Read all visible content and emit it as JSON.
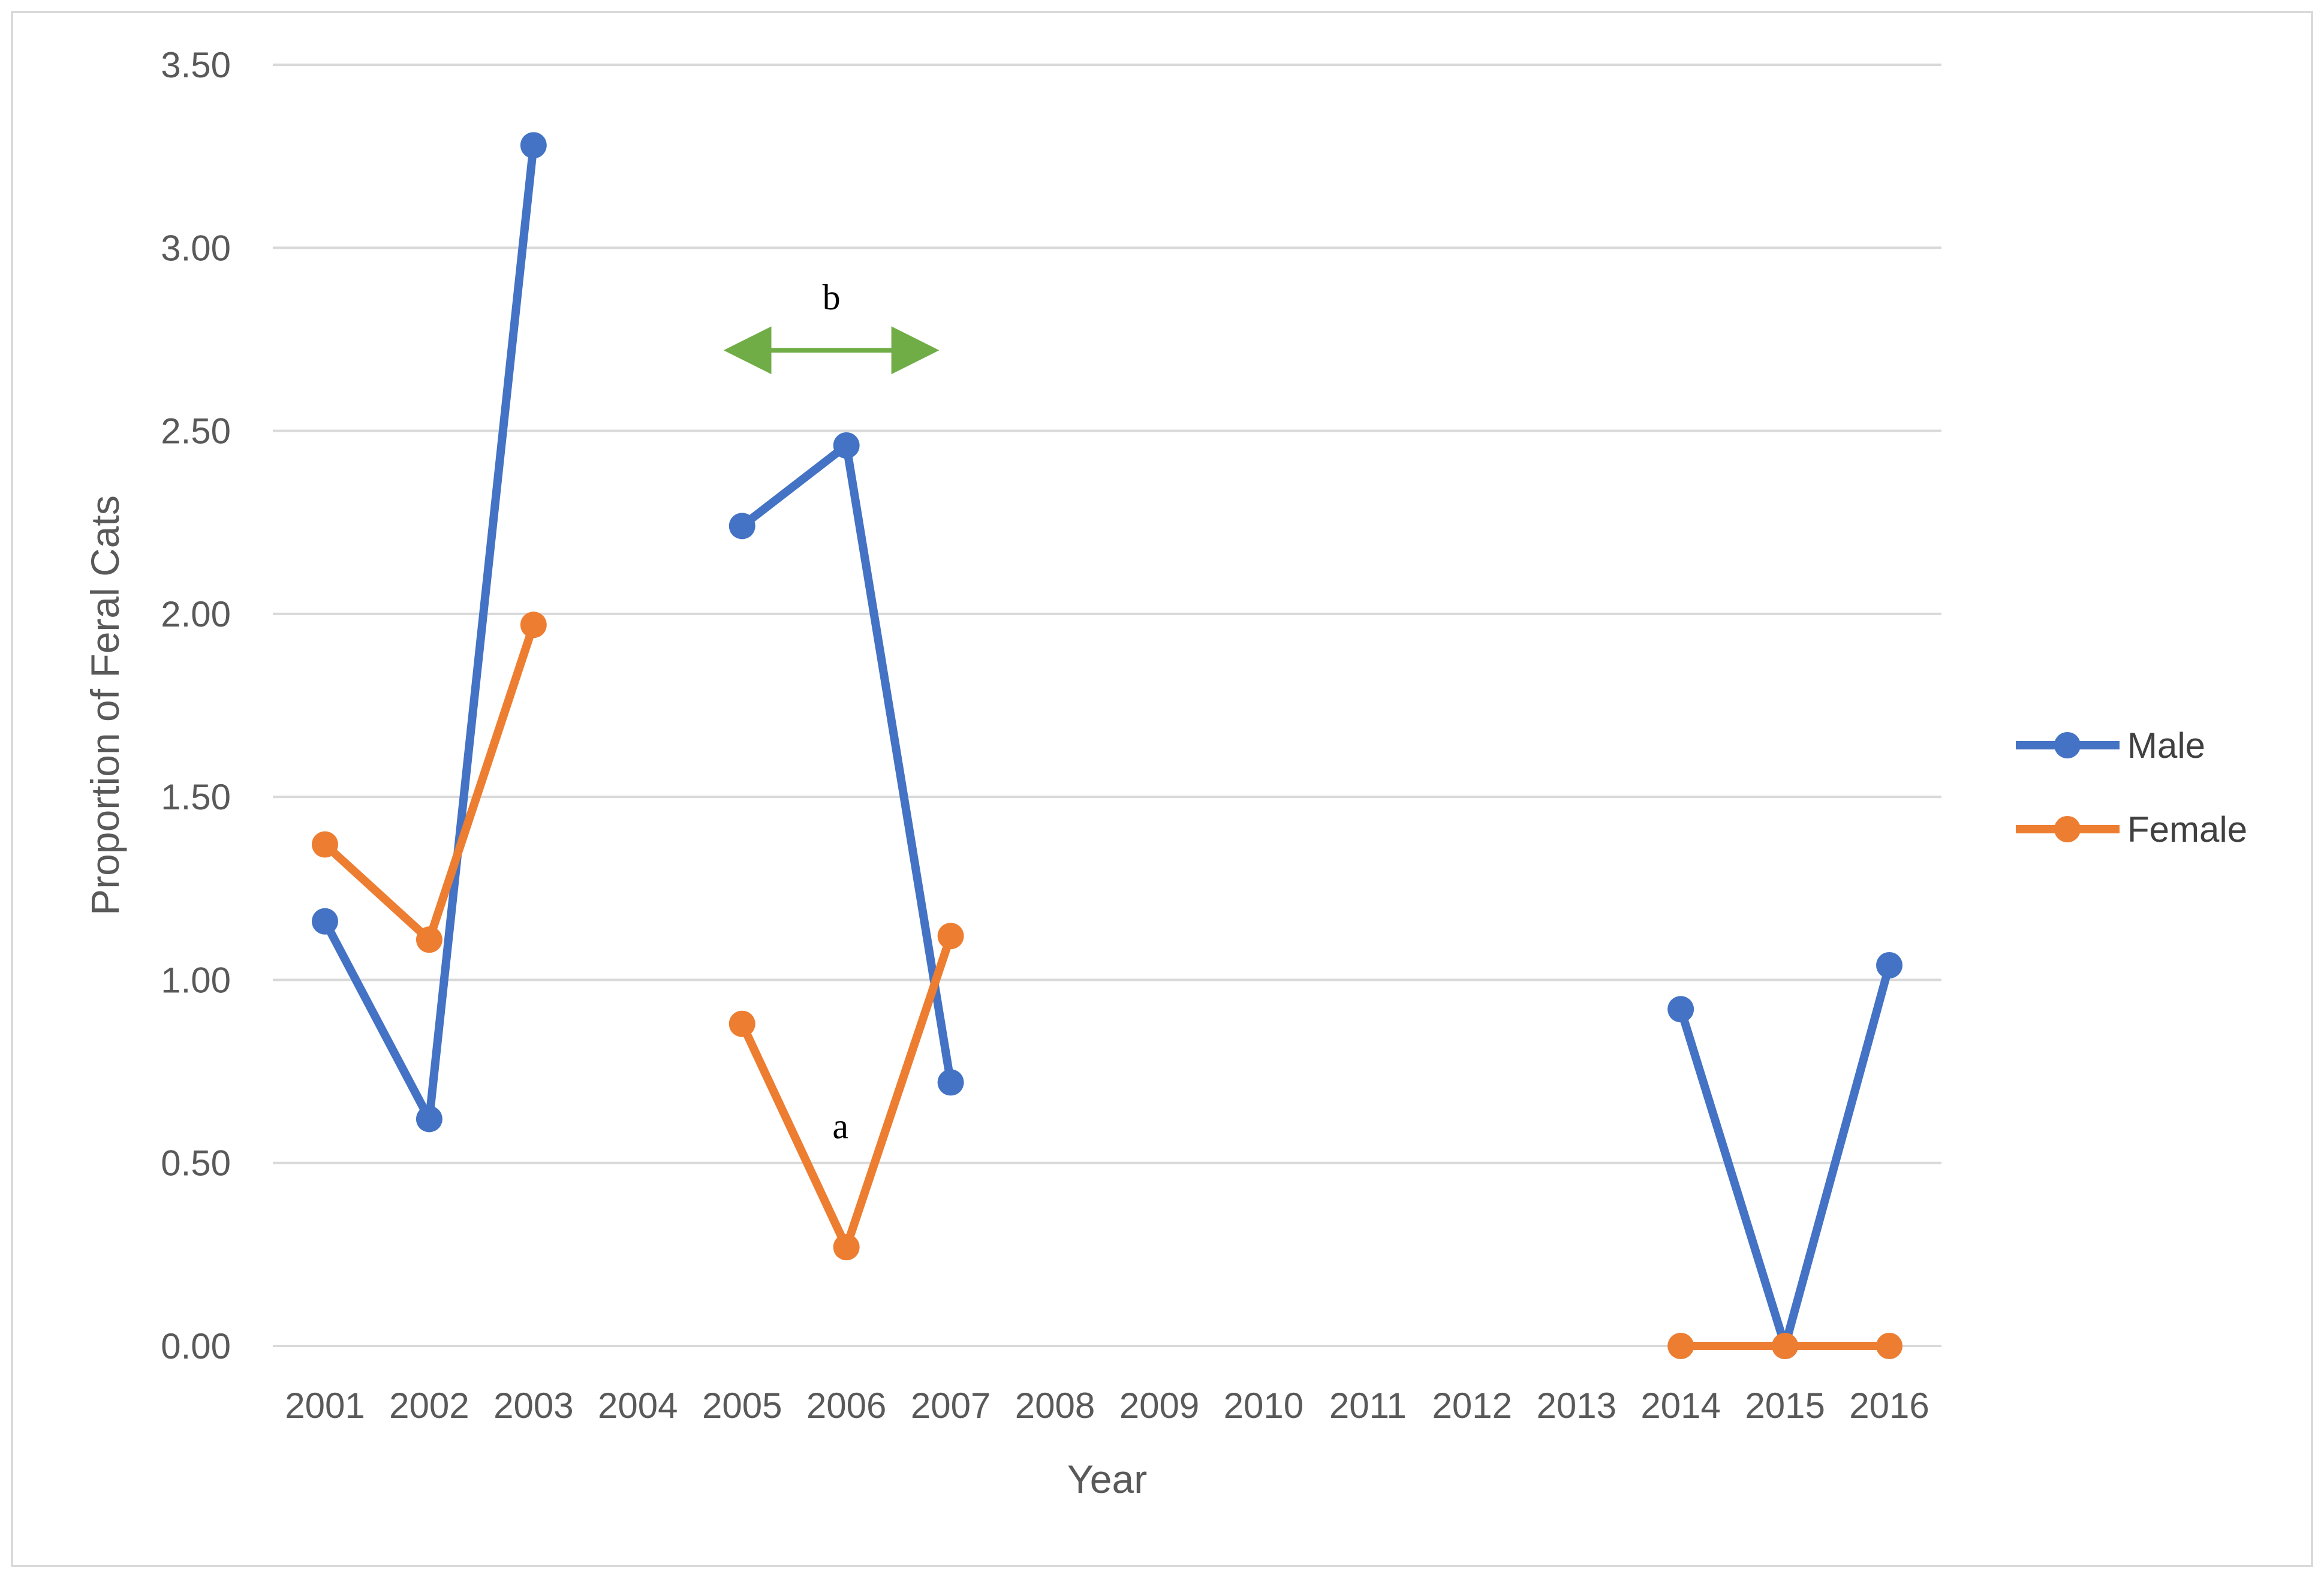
{
  "chart_data": {
    "type": "line",
    "xlabel": "Year",
    "ylabel": "Proportion of Feral Cats",
    "ylim": [
      0,
      3.5
    ],
    "yticks": [
      "0.00",
      "0.50",
      "1.00",
      "1.50",
      "2.00",
      "2.50",
      "3.00",
      "3.50"
    ],
    "categories": [
      "2001",
      "2002",
      "2003",
      "2004",
      "2005",
      "2006",
      "2007",
      "2008",
      "2009",
      "2010",
      "2011",
      "2012",
      "2013",
      "2014",
      "2015",
      "2016"
    ],
    "grid": "horizontal",
    "legend_position": "right",
    "series": [
      {
        "name": "Male",
        "color": "#4472c4",
        "values": [
          1.16,
          0.62,
          3.28,
          null,
          2.24,
          2.46,
          0.72,
          null,
          null,
          null,
          null,
          null,
          null,
          0.92,
          0.0,
          1.04
        ]
      },
      {
        "name": "Female",
        "color": "#ed7d31",
        "values": [
          1.37,
          1.11,
          1.97,
          null,
          0.88,
          0.27,
          1.12,
          null,
          null,
          null,
          null,
          null,
          null,
          0.0,
          0.0,
          0.0
        ]
      }
    ],
    "annotations": [
      {
        "text": "b",
        "x_from": "2005",
        "x_to": "2007",
        "y": 2.72,
        "arrow": "double",
        "color": "#70ad47"
      },
      {
        "text": "a",
        "x": "2006",
        "y": 0.6
      }
    ]
  }
}
